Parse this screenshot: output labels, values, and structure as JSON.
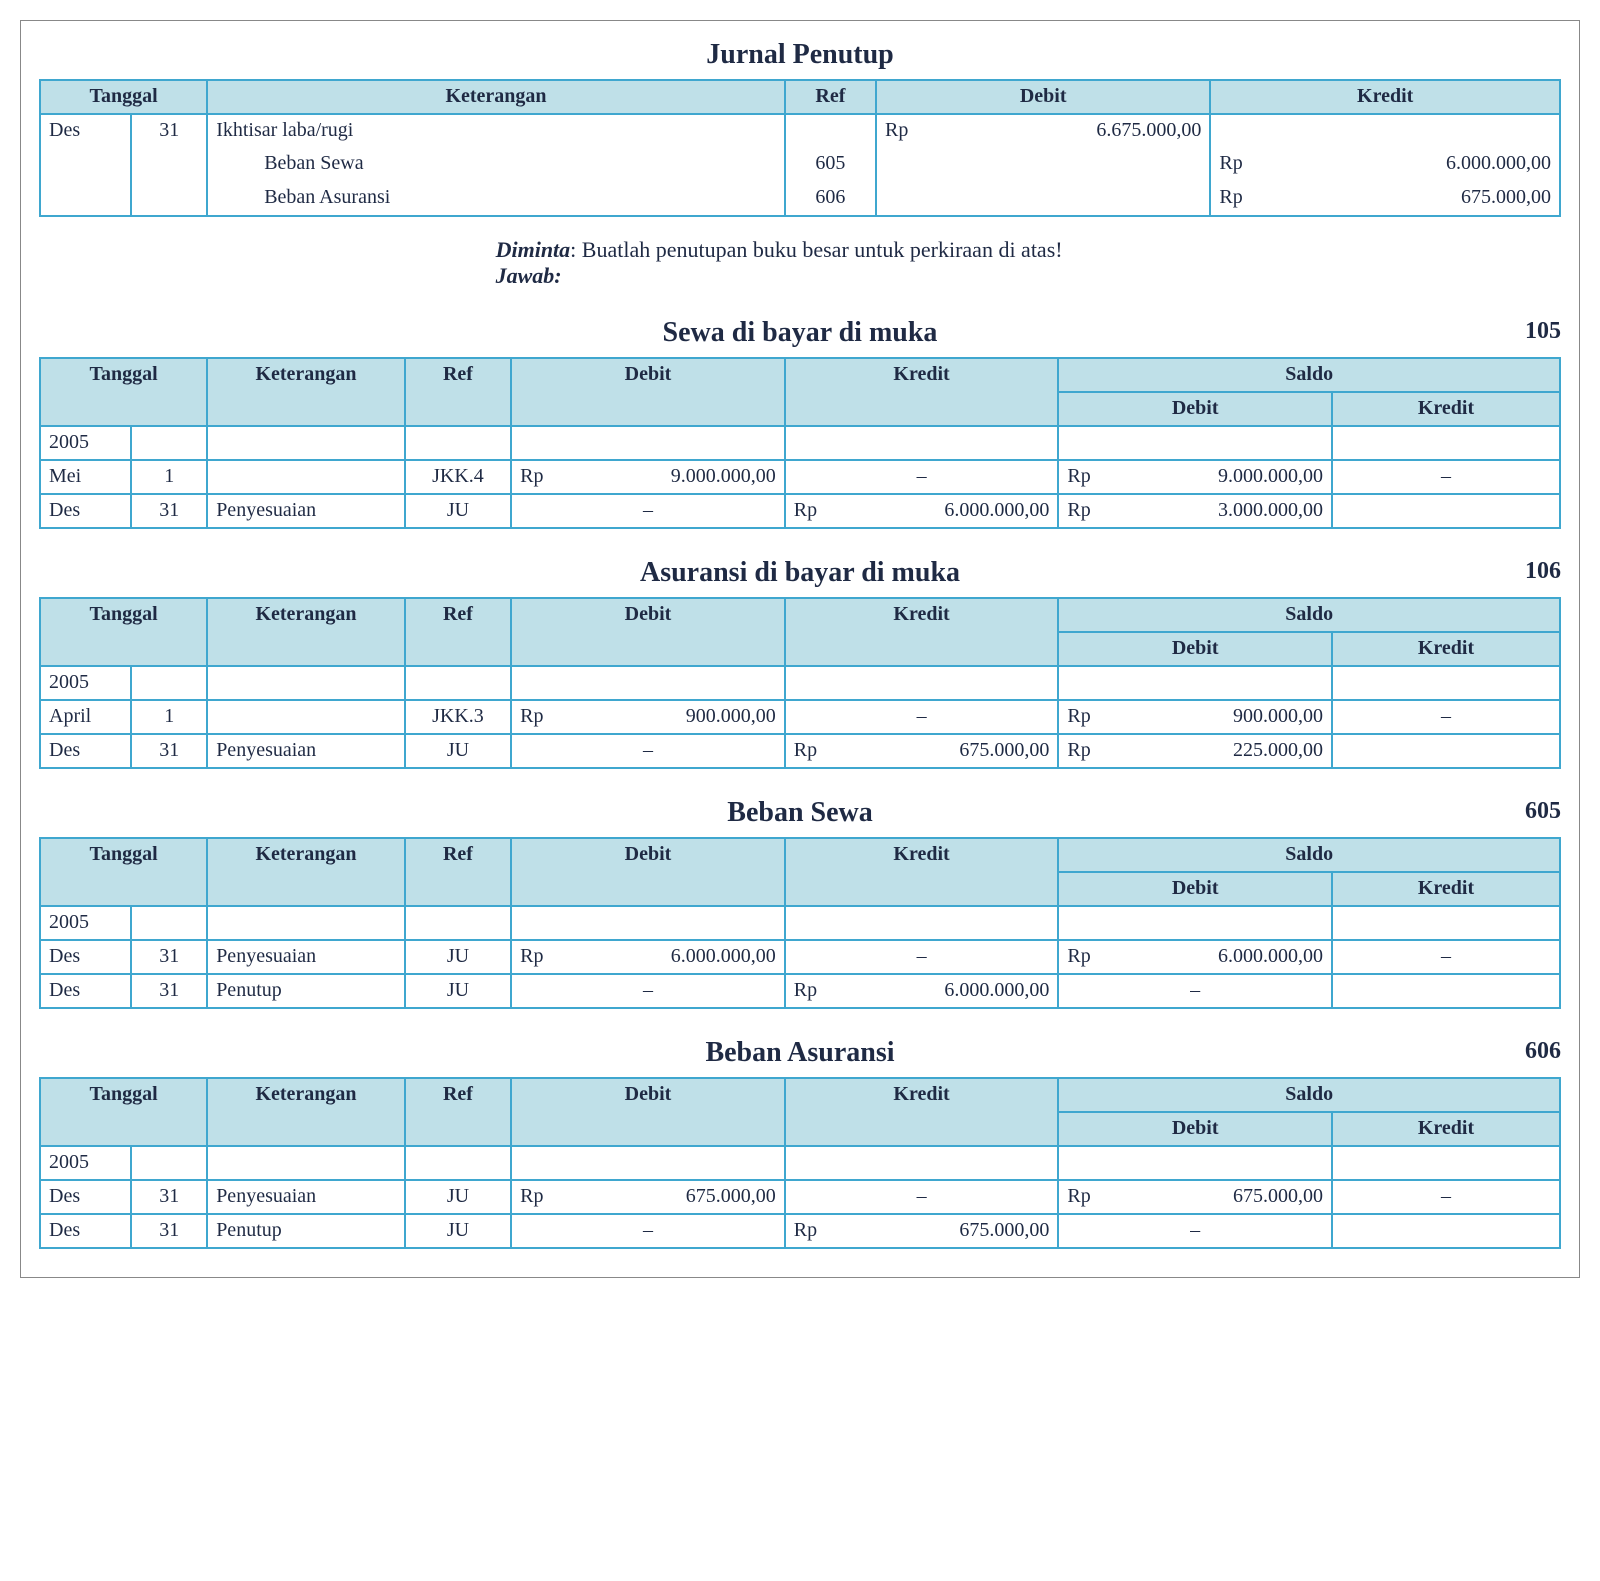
{
  "colors": {
    "border": "#3fa7cf",
    "header_bg": "#bfe0e8",
    "text": "#1f2a44",
    "page_bg": "#ffffff"
  },
  "journal": {
    "title": "Jurnal Penutup",
    "headers": {
      "tanggal": "Tanggal",
      "keterangan": "Keterangan",
      "ref": "Ref",
      "debit": "Debit",
      "kredit": "Kredit"
    },
    "month": "Des",
    "day": "31",
    "lines": {
      "l0": {
        "desc": "Ikhtisar laba/rugi",
        "ref": "",
        "debit_cur": "Rp",
        "debit_amt": "6.675.000,00",
        "kredit_cur": "",
        "kredit_amt": ""
      },
      "l1": {
        "desc": "Beban Sewa",
        "ref": "605",
        "debit_cur": "",
        "debit_amt": "",
        "kredit_cur": "Rp",
        "kredit_amt": "6.000.000,00"
      },
      "l2": {
        "desc": "Beban Asuransi",
        "ref": "606",
        "debit_cur": "",
        "debit_amt": "",
        "kredit_cur": "Rp",
        "kredit_amt": "675.000,00"
      }
    }
  },
  "instruction": {
    "diminta_label": "Diminta",
    "diminta_text": ": Buatlah penutupan buku besar untuk perkiraan di atas!",
    "jawab_label": "Jawab:"
  },
  "ledger_headers": {
    "tanggal": "Tanggal",
    "keterangan": "Keterangan",
    "ref": "Ref",
    "debit": "Debit",
    "kredit": "Kredit",
    "saldo": "Saldo",
    "saldo_debit": "Debit",
    "saldo_kredit": "Kredit"
  },
  "ledgers": [
    {
      "title": "Sewa di bayar di muka",
      "acct": "105",
      "rows": [
        {
          "m": "2005",
          "d": "",
          "ket": "",
          "ref": "",
          "deb": "",
          "kre": "",
          "sd": "",
          "sk": ""
        },
        {
          "m": "Mei",
          "d": "1",
          "ket": "",
          "ref": "JKK.4",
          "deb": "Rp   9.000.000,00",
          "kre": "–",
          "sd": "Rp  9.000.000,00",
          "sk": "–"
        },
        {
          "m": "Des",
          "d": "31",
          "ket": "Penyesuaian",
          "ref": "JU",
          "deb": "–",
          "kre": "Rp   6.000.000,00",
          "sd": "Rp  3.000.000,00",
          "sk": ""
        }
      ]
    },
    {
      "title": "Asuransi di bayar di muka",
      "acct": "106",
      "rows": [
        {
          "m": "2005",
          "d": "",
          "ket": "",
          "ref": "",
          "deb": "",
          "kre": "",
          "sd": "",
          "sk": ""
        },
        {
          "m": "April",
          "d": "1",
          "ket": "",
          "ref": "JKK.3",
          "deb": "Rp      900.000,00",
          "kre": "–",
          "sd": "Rp     900.000,00",
          "sk": "–"
        },
        {
          "m": "Des",
          "d": "31",
          "ket": "Penyesuaian",
          "ref": "JU",
          "deb": "–",
          "kre": "Rp      675.000,00",
          "sd": "Rp     225.000,00",
          "sk": ""
        }
      ]
    },
    {
      "title": "Beban Sewa",
      "acct": "605",
      "rows": [
        {
          "m": "2005",
          "d": "",
          "ket": "",
          "ref": "",
          "deb": "",
          "kre": "",
          "sd": "",
          "sk": ""
        },
        {
          "m": "Des",
          "d": "31",
          "ket": "Penyesuaian",
          "ref": "JU",
          "deb": "Rp   6.000.000,00",
          "kre": "–",
          "sd": "Rp  6.000.000,00",
          "sk": "–"
        },
        {
          "m": "Des",
          "d": "31",
          "ket": "Penutup",
          "ref": "JU",
          "deb": "–",
          "kre": "Rp   6.000.000,00",
          "sd": "–",
          "sk": ""
        }
      ]
    },
    {
      "title": "Beban Asuransi",
      "acct": "606",
      "rows": [
        {
          "m": "2005",
          "d": "",
          "ket": "",
          "ref": "",
          "deb": "",
          "kre": "",
          "sd": "",
          "sk": ""
        },
        {
          "m": "Des",
          "d": "31",
          "ket": "Penyesuaian",
          "ref": "JU",
          "deb": "Rp      675.000,00",
          "kre": "–",
          "sd": "Rp     675.000,00",
          "sk": "–"
        },
        {
          "m": "Des",
          "d": "31",
          "ket": "Penutup",
          "ref": "JU",
          "deb": "–",
          "kre": "Rp      675.000,00",
          "sd": "–",
          "sk": ""
        }
      ]
    }
  ]
}
